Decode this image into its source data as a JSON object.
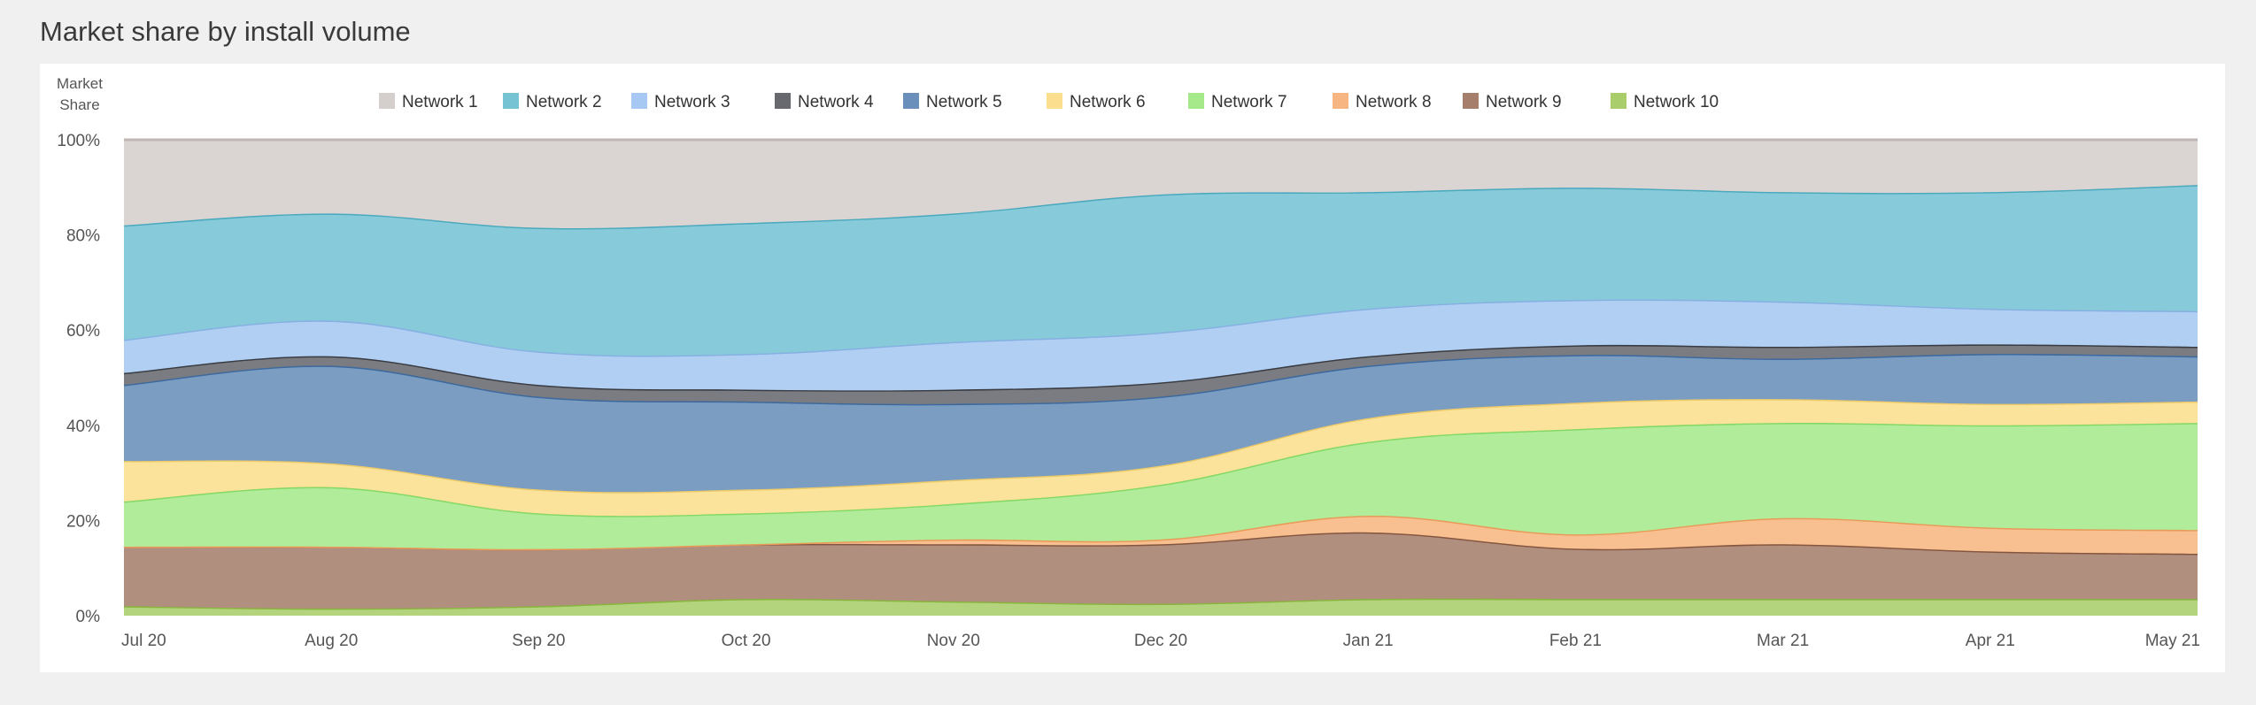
{
  "page": {
    "title": "Market share by install volume"
  },
  "chart_data": {
    "type": "area",
    "stacked": true,
    "percent_stacked": true,
    "title": "Market share by install volume",
    "ylabel": "Market Share",
    "xlabel": "",
    "ylim": [
      0,
      100
    ],
    "y_ticks": [
      "0%",
      "20%",
      "40%",
      "60%",
      "80%",
      "100%"
    ],
    "grid": false,
    "legend_position": "top",
    "categories": [
      "Jul 20",
      "Aug 20",
      "Sep 20",
      "Oct 20",
      "Nov 20",
      "Dec 20",
      "Jan 21",
      "Feb 21",
      "Mar 21",
      "Apr 21",
      "May 21"
    ],
    "series": [
      {
        "name": "Network 10",
        "color": "#8fbf40",
        "values": [
          2,
          1.5,
          2,
          3.5,
          3,
          2.5,
          3.5,
          3.5,
          3.5,
          3.5,
          3.5
        ]
      },
      {
        "name": "Network 9",
        "color": "#8c5a42",
        "values": [
          12.5,
          13,
          12,
          11.5,
          12,
          12.5,
          14,
          10.5,
          11.5,
          10,
          9.5
        ]
      },
      {
        "name": "Network 8",
        "color": "#f5a25d",
        "values": [
          0,
          0,
          0,
          0,
          1,
          1,
          3.5,
          3,
          5.5,
          5,
          5
        ]
      },
      {
        "name": "Network 7",
        "color": "#8be36a",
        "values": [
          9.5,
          12.5,
          7.5,
          6.5,
          7.5,
          11.5,
          15.5,
          22,
          20,
          21.5,
          22.5
        ]
      },
      {
        "name": "Network 6",
        "color": "#fbd66e",
        "values": [
          8.5,
          5,
          5,
          5,
          5,
          4,
          5,
          5.5,
          5,
          4.5,
          4.5
        ]
      },
      {
        "name": "Network 5",
        "color": "#3f6fa6",
        "values": [
          16,
          20.5,
          19.5,
          18.5,
          16,
          14.5,
          11,
          10,
          8.5,
          10.5,
          9.5
        ]
      },
      {
        "name": "Network 4",
        "color": "#3c3f45",
        "values": [
          2.5,
          2,
          2.5,
          2.5,
          3,
          3,
          2,
          2,
          2.5,
          2,
          2
        ]
      },
      {
        "name": "Network 3",
        "color": "#8db9ee",
        "values": [
          7,
          7.5,
          7,
          7.5,
          10,
          10.5,
          10,
          9.5,
          9.5,
          7.5,
          7.5
        ]
      },
      {
        "name": "Network 2",
        "color": "#4fb2c8",
        "values": [
          24,
          22.5,
          26,
          27.5,
          27,
          29,
          24.5,
          23.5,
          23,
          24.5,
          26.5
        ]
      },
      {
        "name": "Network 1",
        "color": "#c8c1bd",
        "values": [
          18,
          15.5,
          18.5,
          17.5,
          15.5,
          11.5,
          11,
          10,
          11,
          11,
          9.5
        ]
      }
    ]
  }
}
